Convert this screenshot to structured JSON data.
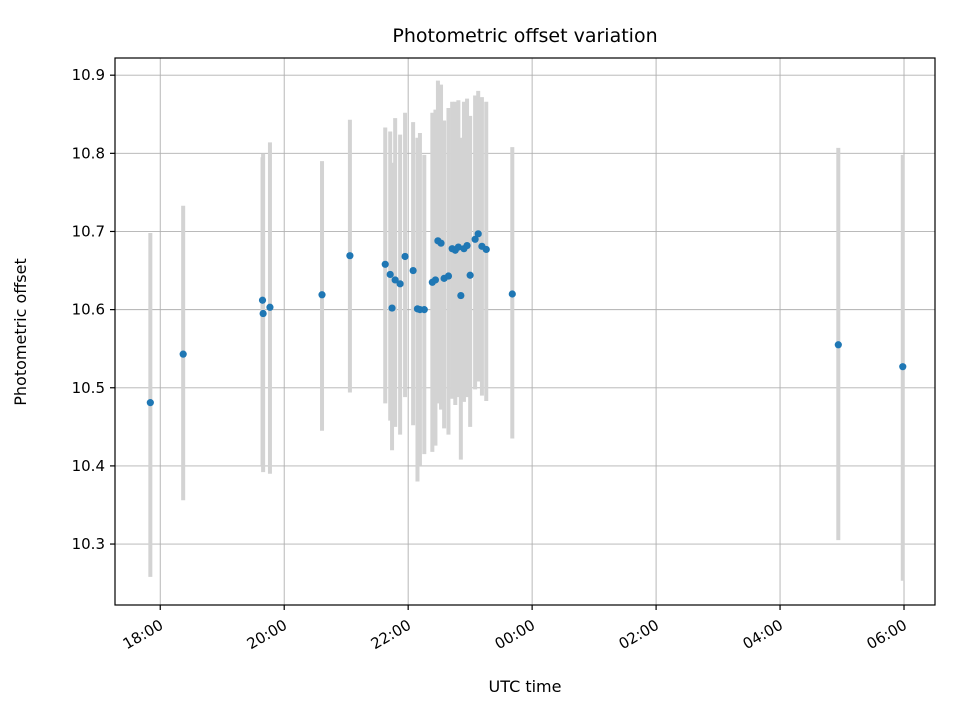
{
  "chart_data": {
    "type": "scatter",
    "title": "Photometric offset variation",
    "xlabel": "UTC time",
    "ylabel": "Photometric offset",
    "grid": true,
    "legend": "none",
    "x_unit": "decimal_hours_utc_continuous_past_midnight",
    "xlim": [
      17.27,
      30.5
    ],
    "ylim": [
      10.222,
      10.922
    ],
    "x_ticks": [
      {
        "value": 18,
        "label": "18:00"
      },
      {
        "value": 20,
        "label": "20:00"
      },
      {
        "value": 22,
        "label": "22:00"
      },
      {
        "value": 24,
        "label": "00:00"
      },
      {
        "value": 26,
        "label": "02:00"
      },
      {
        "value": 28,
        "label": "04:00"
      },
      {
        "value": 30,
        "label": "06:00"
      }
    ],
    "y_ticks": [
      {
        "value": 10.3,
        "label": "10.3"
      },
      {
        "value": 10.4,
        "label": "10.4"
      },
      {
        "value": 10.5,
        "label": "10.5"
      },
      {
        "value": 10.6,
        "label": "10.6"
      },
      {
        "value": 10.7,
        "label": "10.7"
      },
      {
        "value": 10.8,
        "label": "10.8"
      },
      {
        "value": 10.9,
        "label": "10.9"
      }
    ],
    "colors": {
      "marker": "#1f77b4",
      "errorbar": "#d3d3d3",
      "grid": "#b0b0b0",
      "axis": "#000000",
      "background": "#ffffff"
    },
    "points_columns": [
      "x_hours",
      "y",
      "err_low",
      "err_high"
    ],
    "series": [
      {
        "name": "photometric_offset_with_errorbars",
        "points": [
          [
            17.84,
            10.481,
            10.258,
            10.698
          ],
          [
            18.37,
            10.543,
            10.356,
            10.733
          ],
          [
            19.65,
            10.612,
            10.4,
            10.795
          ],
          [
            19.66,
            10.595,
            10.392,
            10.8
          ],
          [
            19.77,
            10.603,
            10.39,
            10.814
          ],
          [
            20.61,
            10.619,
            10.445,
            10.79
          ],
          [
            21.06,
            10.669,
            10.494,
            10.843
          ],
          [
            21.63,
            10.658,
            10.48,
            10.833
          ],
          [
            21.71,
            10.645,
            10.458,
            10.828
          ],
          [
            21.74,
            10.602,
            10.42,
            10.788
          ],
          [
            21.79,
            10.638,
            10.45,
            10.845
          ],
          [
            21.87,
            10.633,
            10.44,
            10.824
          ],
          [
            21.95,
            10.668,
            10.488,
            10.852
          ],
          [
            22.08,
            10.65,
            10.452,
            10.84
          ],
          [
            22.15,
            10.601,
            10.38,
            10.82
          ],
          [
            22.19,
            10.6,
            10.4,
            10.826
          ],
          [
            22.26,
            10.6,
            10.415,
            10.798
          ],
          [
            22.39,
            10.635,
            10.418,
            10.852
          ],
          [
            22.44,
            10.638,
            10.426,
            10.856
          ],
          [
            22.48,
            10.688,
            10.48,
            10.893
          ],
          [
            22.53,
            10.685,
            10.472,
            10.888
          ],
          [
            22.58,
            10.64,
            10.448,
            10.842
          ],
          [
            22.65,
            10.643,
            10.44,
            10.858
          ],
          [
            22.71,
            10.678,
            10.486,
            10.866
          ],
          [
            22.76,
            10.676,
            10.478,
            10.866
          ],
          [
            22.81,
            10.68,
            10.488,
            10.868
          ],
          [
            22.85,
            10.618,
            10.408,
            10.82
          ],
          [
            22.9,
            10.678,
            10.482,
            10.866
          ],
          [
            22.95,
            10.682,
            10.488,
            10.87
          ],
          [
            23.0,
            10.644,
            10.45,
            10.848
          ],
          [
            23.08,
            10.69,
            10.498,
            10.874
          ],
          [
            23.13,
            10.697,
            10.508,
            10.88
          ],
          [
            23.19,
            10.681,
            10.49,
            10.872
          ],
          [
            23.26,
            10.677,
            10.483,
            10.866
          ],
          [
            23.68,
            10.62,
            10.435,
            10.808
          ],
          [
            28.94,
            10.555,
            10.305,
            10.807
          ],
          [
            29.98,
            10.527,
            10.253,
            10.798
          ]
        ]
      }
    ]
  }
}
